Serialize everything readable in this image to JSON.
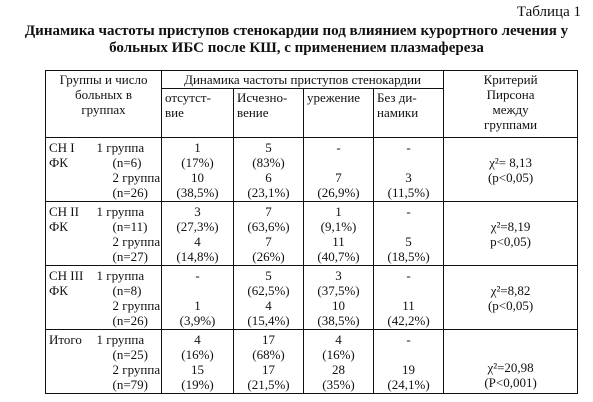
{
  "caption": "Таблица 1",
  "title_lines": [
    "Динамика частоты приступов стенокардии под влиянием курортного лечения у",
    "больных ИБС после КШ, с применением плазмафереза"
  ],
  "header": {
    "groups": [
      "Группы и число",
      "больных в",
      "группах"
    ],
    "dynamics": "Динамика частоты приступов стенокардии",
    "cols": [
      [
        "отсутст-",
        "вие"
      ],
      [
        "Исчезно-",
        "вение"
      ],
      [
        "урежение"
      ],
      [
        "Без ди-",
        "намики"
      ]
    ],
    "criterion": [
      "Критерий",
      "Пирсона",
      "между",
      "группами"
    ]
  },
  "sections": [
    {
      "label": [
        "СН I",
        "ФК"
      ],
      "sub": [
        "1 группа",
        "(n=6)",
        "2 группа",
        "(n=26)"
      ],
      "c1": [
        "1",
        "(17%)",
        "10",
        "(38,5%)"
      ],
      "c2": [
        "5",
        "(83%)",
        "6",
        "(23,1%)"
      ],
      "c3": [
        "-",
        "",
        "7",
        "(26,9%)"
      ],
      "c4": [
        "-",
        "",
        "3",
        "(11,5%)"
      ],
      "crit": [
        "χ²= 8,13",
        "(p<0,05)"
      ]
    },
    {
      "label": [
        "СН II",
        "ФК"
      ],
      "sub": [
        "1 группа",
        "(n=11)",
        "2 группа",
        "(n=27)"
      ],
      "c1": [
        "3",
        "(27,3%)",
        "4",
        "(14,8%)"
      ],
      "c2": [
        "7",
        "(63,6%)",
        "7",
        "(26%)"
      ],
      "c3": [
        "1",
        "(9,1%)",
        "11",
        "(40,7%)"
      ],
      "c4": [
        "-",
        "",
        "5",
        "(18,5%)"
      ],
      "crit": [
        "χ²=8,19",
        "p<0,05)"
      ]
    },
    {
      "label": [
        "СН III",
        "ФК"
      ],
      "sub": [
        "1 группа",
        "(n=8)",
        "2 группа",
        "(n=26)"
      ],
      "c1": [
        "-",
        "",
        "1",
        "(3,9%)"
      ],
      "c2": [
        "5",
        "(62,5%)",
        "4",
        "(15,4%)"
      ],
      "c3": [
        "3",
        "(37,5%)",
        "10",
        "(38,5%)"
      ],
      "c4": [
        "-",
        "",
        "11",
        "(42,2%)"
      ],
      "crit": [
        "χ²=8,82",
        "(p<0,05)"
      ]
    },
    {
      "label": [
        "Итого",
        ""
      ],
      "sub": [
        "1 группа",
        "(n=25)",
        "2 группа",
        "(n=79)"
      ],
      "c1": [
        "4",
        "(16%)",
        "15",
        "(19%)"
      ],
      "c2": [
        "17",
        "(68%)",
        "17",
        "(21,5%)"
      ],
      "c3": [
        "4",
        "(16%)",
        "28",
        "(35%)"
      ],
      "c4": [
        "-",
        "",
        "19",
        "(24,1%)"
      ],
      "crit": [
        "χ²=20,98",
        "(P<0,001)"
      ]
    }
  ]
}
